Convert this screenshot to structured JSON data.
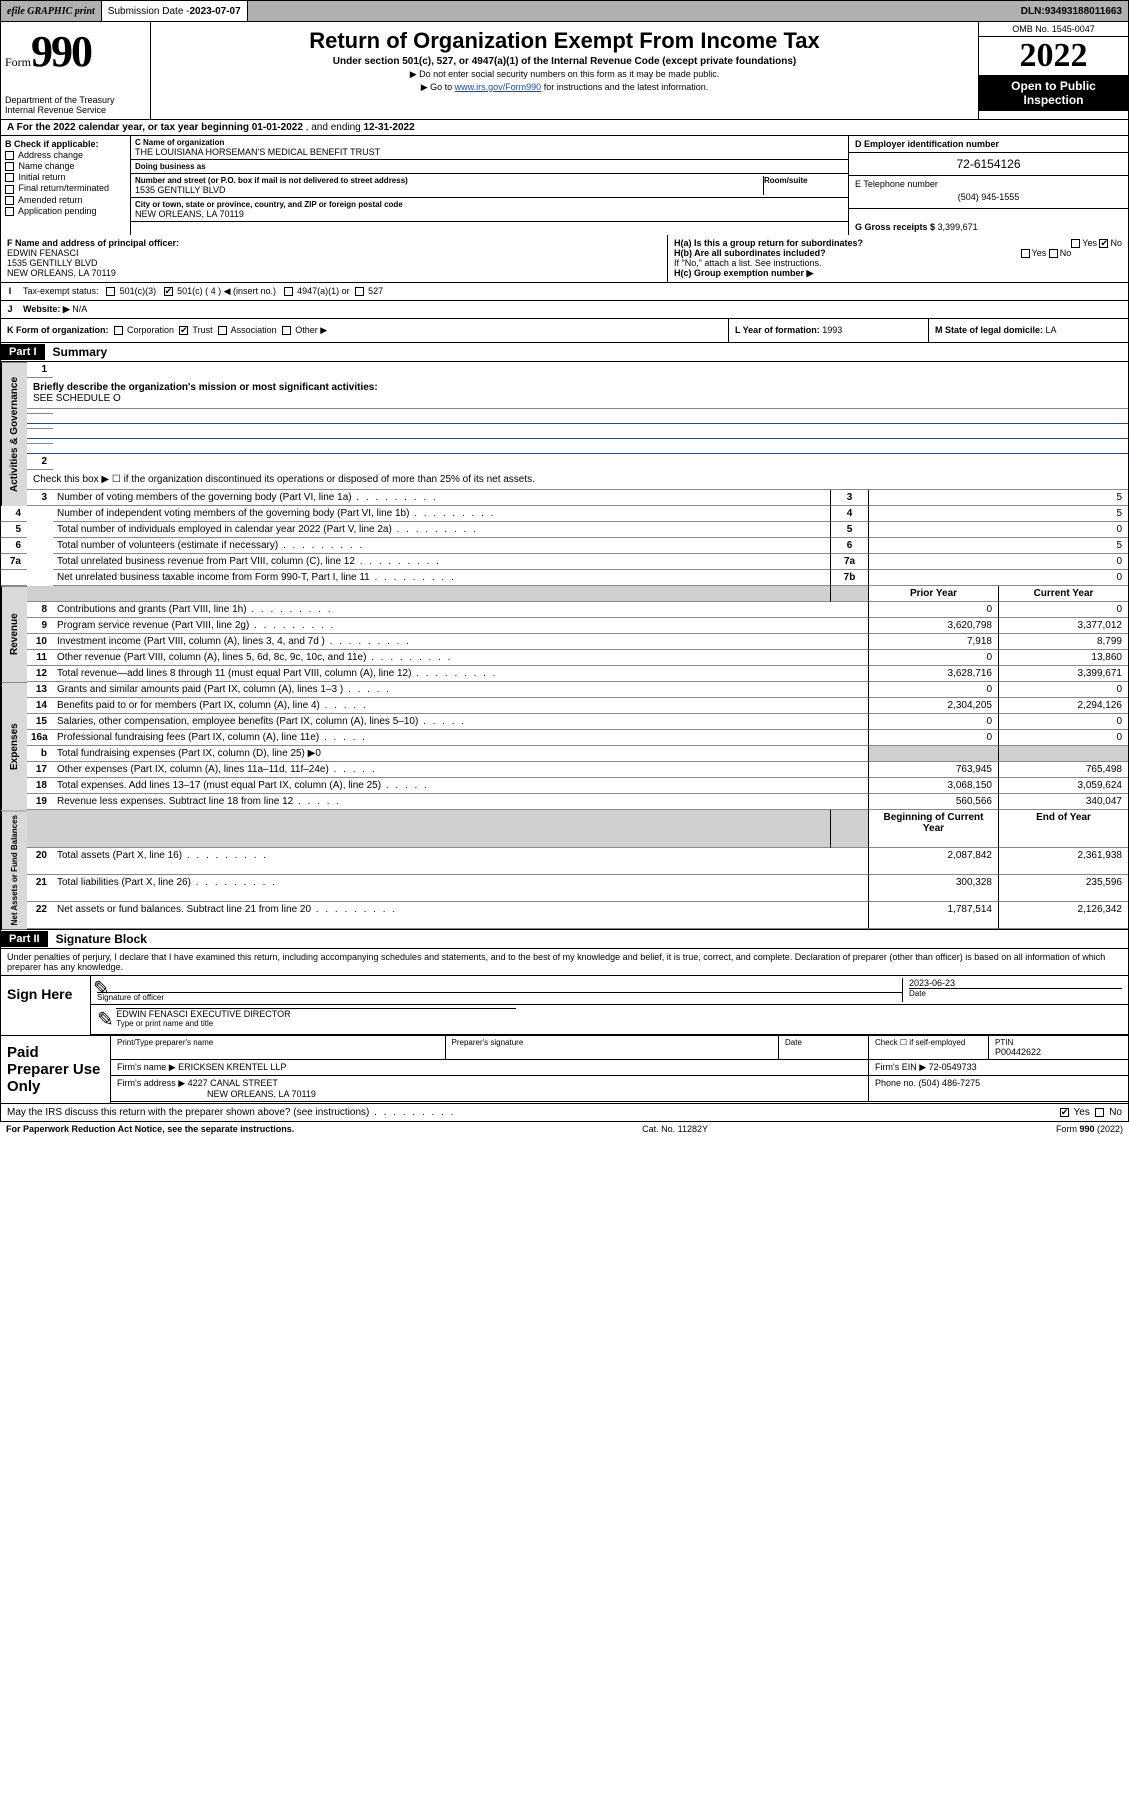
{
  "topbar": {
    "efile_label": "efile GRAPHIC print",
    "submission_label": "Submission Date - ",
    "submission_date": "2023-07-07",
    "dln_label": "DLN: ",
    "dln": "93493188011663"
  },
  "header": {
    "form_label": "Form",
    "form_number": "990",
    "dept": "Department of the Treasury Internal Revenue Service",
    "title": "Return of Organization Exempt From Income Tax",
    "subtitle": "Under section 501(c), 527, or 4947(a)(1) of the Internal Revenue Code (except private foundations)",
    "note1": "▶ Do not enter social security numbers on this form as it may be made public.",
    "note2_pre": "▶ Go to ",
    "note2_link": "www.irs.gov/Form990",
    "note2_post": " for instructions and the latest information.",
    "omb": "OMB No. 1545-0047",
    "year": "2022",
    "open": "Open to Public Inspection"
  },
  "row_a": {
    "text": "A For the 2022 calendar year, or tax year beginning ",
    "begin": "01-01-2022",
    "mid": " , and ending ",
    "end": "12-31-2022"
  },
  "col_b": {
    "hd": "B Check if applicable:",
    "opts": [
      "Address change",
      "Name change",
      "Initial return",
      "Final return/terminated",
      "Amended return",
      "Application pending"
    ]
  },
  "col_c": {
    "name_lbl": "C Name of organization",
    "name": "THE LOUISIANA HORSEMAN'S MEDICAL BENEFIT TRUST",
    "dba_lbl": "Doing business as",
    "dba": "",
    "addr_lbl": "Number and street (or P.O. box if mail is not delivered to street address)",
    "room_lbl": "Room/suite",
    "addr": "1535 GENTILLY BLVD",
    "city_lbl": "City or town, state or province, country, and ZIP or foreign postal code",
    "city": "NEW ORLEANS, LA  70119"
  },
  "col_d": {
    "ein_lbl": "D Employer identification number",
    "ein": "72-6154126",
    "tel_lbl": "E Telephone number",
    "tel": "(504) 945-1555",
    "gross_lbl": "G Gross receipts $ ",
    "gross": "3,399,671"
  },
  "col_f": {
    "lbl": "F Name and address of principal officer:",
    "name": "EDWIN FENASCI",
    "addr1": "1535 GENTILLY BLVD",
    "addr2": "NEW ORLEANS, LA  70119"
  },
  "col_h": {
    "a_lbl": "H(a) Is this a group return for subordinates?",
    "a_yes": "Yes",
    "a_no": "No",
    "b_lbl": "H(b) Are all subordinates included?",
    "b_yes": "Yes",
    "b_no": "No",
    "b_note": "If \"No,\" attach a list. See instructions.",
    "c_lbl": "H(c) Group exemption number ▶"
  },
  "row_i": {
    "k": "I",
    "lbl": "Tax-exempt status:",
    "o1": "501(c)(3)",
    "o2": "501(c) ( 4 ) ◀ (insert no.)",
    "o3": "4947(a)(1) or",
    "o4": "527"
  },
  "row_j": {
    "k": "J",
    "lbl": "Website: ▶",
    "val": "N/A"
  },
  "row_k": {
    "lbl": "K Form of organization:",
    "o1": "Corporation",
    "o2": "Trust",
    "o3": "Association",
    "o4": "Other ▶",
    "l_lbl": "L Year of formation: ",
    "l_val": "1993",
    "m_lbl": "M State of legal domicile: ",
    "m_val": "LA"
  },
  "part1": {
    "hdr": "Part I",
    "title": "Summary"
  },
  "summary": {
    "side_ag": "Activities & Governance",
    "side_rev": "Revenue",
    "side_exp": "Expenses",
    "side_na": "Net Assets or Fund Balances",
    "l1_lbl": "Briefly describe the organization's mission or most significant activities:",
    "l1_val": "SEE SCHEDULE O",
    "l2": "Check this box ▶ ☐ if the organization discontinued its operations or disposed of more than 25% of its net assets.",
    "rows_ag": [
      {
        "n": "3",
        "d": "Number of voting members of the governing body (Part VI, line 1a)",
        "box": "3",
        "cur": "5"
      },
      {
        "n": "4",
        "d": "Number of independent voting members of the governing body (Part VI, line 1b)",
        "box": "4",
        "cur": "5"
      },
      {
        "n": "5",
        "d": "Total number of individuals employed in calendar year 2022 (Part V, line 2a)",
        "box": "5",
        "cur": "0"
      },
      {
        "n": "6",
        "d": "Total number of volunteers (estimate if necessary)",
        "box": "6",
        "cur": "5"
      },
      {
        "n": "7a",
        "d": "Total unrelated business revenue from Part VIII, column (C), line 12",
        "box": "7a",
        "cur": "0"
      },
      {
        "n": "",
        "d": "Net unrelated business taxable income from Form 990-T, Part I, line 11",
        "box": "7b",
        "cur": "0"
      }
    ],
    "hdr_prior": "Prior Year",
    "hdr_cur": "Current Year",
    "rows_rev": [
      {
        "n": "8",
        "d": "Contributions and grants (Part VIII, line 1h)",
        "p": "0",
        "c": "0"
      },
      {
        "n": "9",
        "d": "Program service revenue (Part VIII, line 2g)",
        "p": "3,620,798",
        "c": "3,377,012"
      },
      {
        "n": "10",
        "d": "Investment income (Part VIII, column (A), lines 3, 4, and 7d )",
        "p": "7,918",
        "c": "8,799"
      },
      {
        "n": "11",
        "d": "Other revenue (Part VIII, column (A), lines 5, 6d, 8c, 9c, 10c, and 11e)",
        "p": "0",
        "c": "13,860"
      },
      {
        "n": "12",
        "d": "Total revenue—add lines 8 through 11 (must equal Part VIII, column (A), line 12)",
        "p": "3,628,716",
        "c": "3,399,671"
      }
    ],
    "rows_exp": [
      {
        "n": "13",
        "d": "Grants and similar amounts paid (Part IX, column (A), lines 1–3 )",
        "p": "0",
        "c": "0"
      },
      {
        "n": "14",
        "d": "Benefits paid to or for members (Part IX, column (A), line 4)",
        "p": "2,304,205",
        "c": "2,294,126"
      },
      {
        "n": "15",
        "d": "Salaries, other compensation, employee benefits (Part IX, column (A), lines 5–10)",
        "p": "0",
        "c": "0"
      },
      {
        "n": "16a",
        "d": "Professional fundraising fees (Part IX, column (A), line 11e)",
        "p": "0",
        "c": "0"
      },
      {
        "n": "b",
        "d": "Total fundraising expenses (Part IX, column (D), line 25) ▶0",
        "p": "",
        "c": "",
        "grey": true
      },
      {
        "n": "17",
        "d": "Other expenses (Part IX, column (A), lines 11a–11d, 11f–24e)",
        "p": "763,945",
        "c": "765,498"
      },
      {
        "n": "18",
        "d": "Total expenses. Add lines 13–17 (must equal Part IX, column (A), line 25)",
        "p": "3,068,150",
        "c": "3,059,624"
      },
      {
        "n": "19",
        "d": "Revenue less expenses. Subtract line 18 from line 12",
        "p": "560,566",
        "c": "340,047"
      }
    ],
    "hdr_boy": "Beginning of Current Year",
    "hdr_eoy": "End of Year",
    "rows_na": [
      {
        "n": "20",
        "d": "Total assets (Part X, line 16)",
        "p": "2,087,842",
        "c": "2,361,938"
      },
      {
        "n": "21",
        "d": "Total liabilities (Part X, line 26)",
        "p": "300,328",
        "c": "235,596"
      },
      {
        "n": "22",
        "d": "Net assets or fund balances. Subtract line 21 from line 20",
        "p": "1,787,514",
        "c": "2,126,342"
      }
    ]
  },
  "part2": {
    "hdr": "Part II",
    "title": "Signature Block"
  },
  "sig": {
    "decl": "Under penalties of perjury, I declare that I have examined this return, including accompanying schedules and statements, and to the best of my knowledge and belief, it is true, correct, and complete. Declaration of preparer (other than officer) is based on all information of which preparer has any knowledge.",
    "sign_here": "Sign Here",
    "sig_lbl": "Signature of officer",
    "date_lbl": "Date",
    "date": "2023-06-23",
    "name": "EDWIN FENASCI EXECUTIVE DIRECTOR",
    "name_lbl": "Type or print name and title"
  },
  "prep": {
    "side": "Paid Preparer Use Only",
    "h_name": "Print/Type preparer's name",
    "h_sig": "Preparer's signature",
    "h_date": "Date",
    "h_chk": "Check ☐ if self-employed",
    "h_ptin": "PTIN",
    "ptin": "P00442622",
    "firm_lbl": "Firm's name    ▶ ",
    "firm": "ERICKSEN KRENTEL LLP",
    "ein_lbl": "Firm's EIN ▶ ",
    "ein": "72-0549733",
    "addr_lbl": "Firm's address ▶ ",
    "addr1": "4227 CANAL STREET",
    "addr2": "NEW ORLEANS, LA  70119",
    "phone_lbl": "Phone no. ",
    "phone": "(504) 486-7275"
  },
  "may_irs": {
    "q": "May the IRS discuss this return with the preparer shown above? (see instructions)",
    "yes": "Yes",
    "no": "No"
  },
  "footer": {
    "l": "For Paperwork Reduction Act Notice, see the separate instructions.",
    "c": "Cat. No. 11282Y",
    "r": "Form 990 (2022)"
  }
}
